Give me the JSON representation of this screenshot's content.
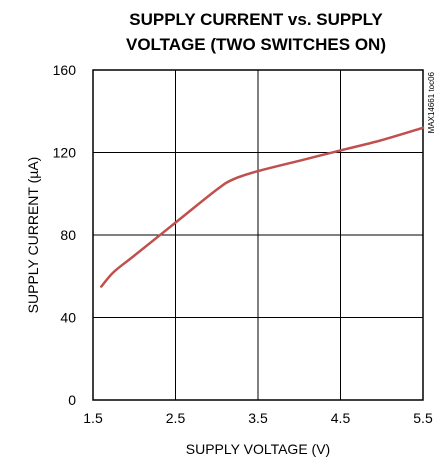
{
  "chart_data": {
    "type": "line",
    "title_lines": [
      "SUPPLY CURRENT vs. SUPPLY",
      "VOLTAGE (TWO SWITCHES ON)"
    ],
    "xlabel": "SUPPLY VOLTAGE (V)",
    "ylabel": "SUPPLY CURRENT (µA)",
    "xlim": [
      1.5,
      5.5
    ],
    "ylim": [
      0,
      160
    ],
    "xticks": [
      "1.5",
      "2.5",
      "3.5",
      "4.5",
      "5.5"
    ],
    "yticks": [
      "0",
      "40",
      "80",
      "120",
      "160"
    ],
    "grid": true,
    "annotation": "MAX14661 toc06",
    "line_color": "#c0504d",
    "series": [
      {
        "x": [
          1.6,
          1.75,
          2.0,
          2.5,
          3.0,
          3.2,
          3.5,
          4.0,
          4.5,
          5.0,
          5.5
        ],
        "values": [
          55,
          62,
          70,
          86,
          102,
          107,
          111,
          116,
          121,
          126,
          132
        ]
      }
    ]
  }
}
